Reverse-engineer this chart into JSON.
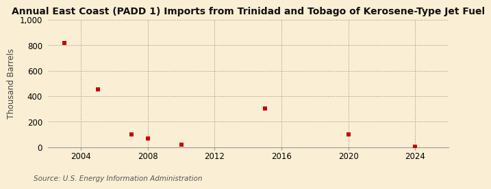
{
  "title": "Annual East Coast (PADD 1) Imports from Trinidad and Tobago of Kerosene-Type Jet Fuel",
  "ylabel": "Thousand Barrels",
  "source": "Source: U.S. Energy Information Administration",
  "background_color": "#faefd4",
  "plot_background_color": "#faefd4",
  "data_x": [
    2003,
    2005,
    2007,
    2008,
    2010,
    2015,
    2020,
    2024
  ],
  "data_y": [
    820,
    455,
    100,
    65,
    20,
    305,
    100,
    5
  ],
  "marker_color": "#cc0000",
  "marker_size": 4,
  "xlim": [
    2002,
    2026
  ],
  "ylim": [
    0,
    1000
  ],
  "yticks": [
    0,
    200,
    400,
    600,
    800,
    1000
  ],
  "xticks": [
    2004,
    2008,
    2012,
    2016,
    2020,
    2024
  ],
  "grid_color": "#b0a090",
  "title_fontsize": 10,
  "axis_fontsize": 8.5,
  "source_fontsize": 7.5
}
